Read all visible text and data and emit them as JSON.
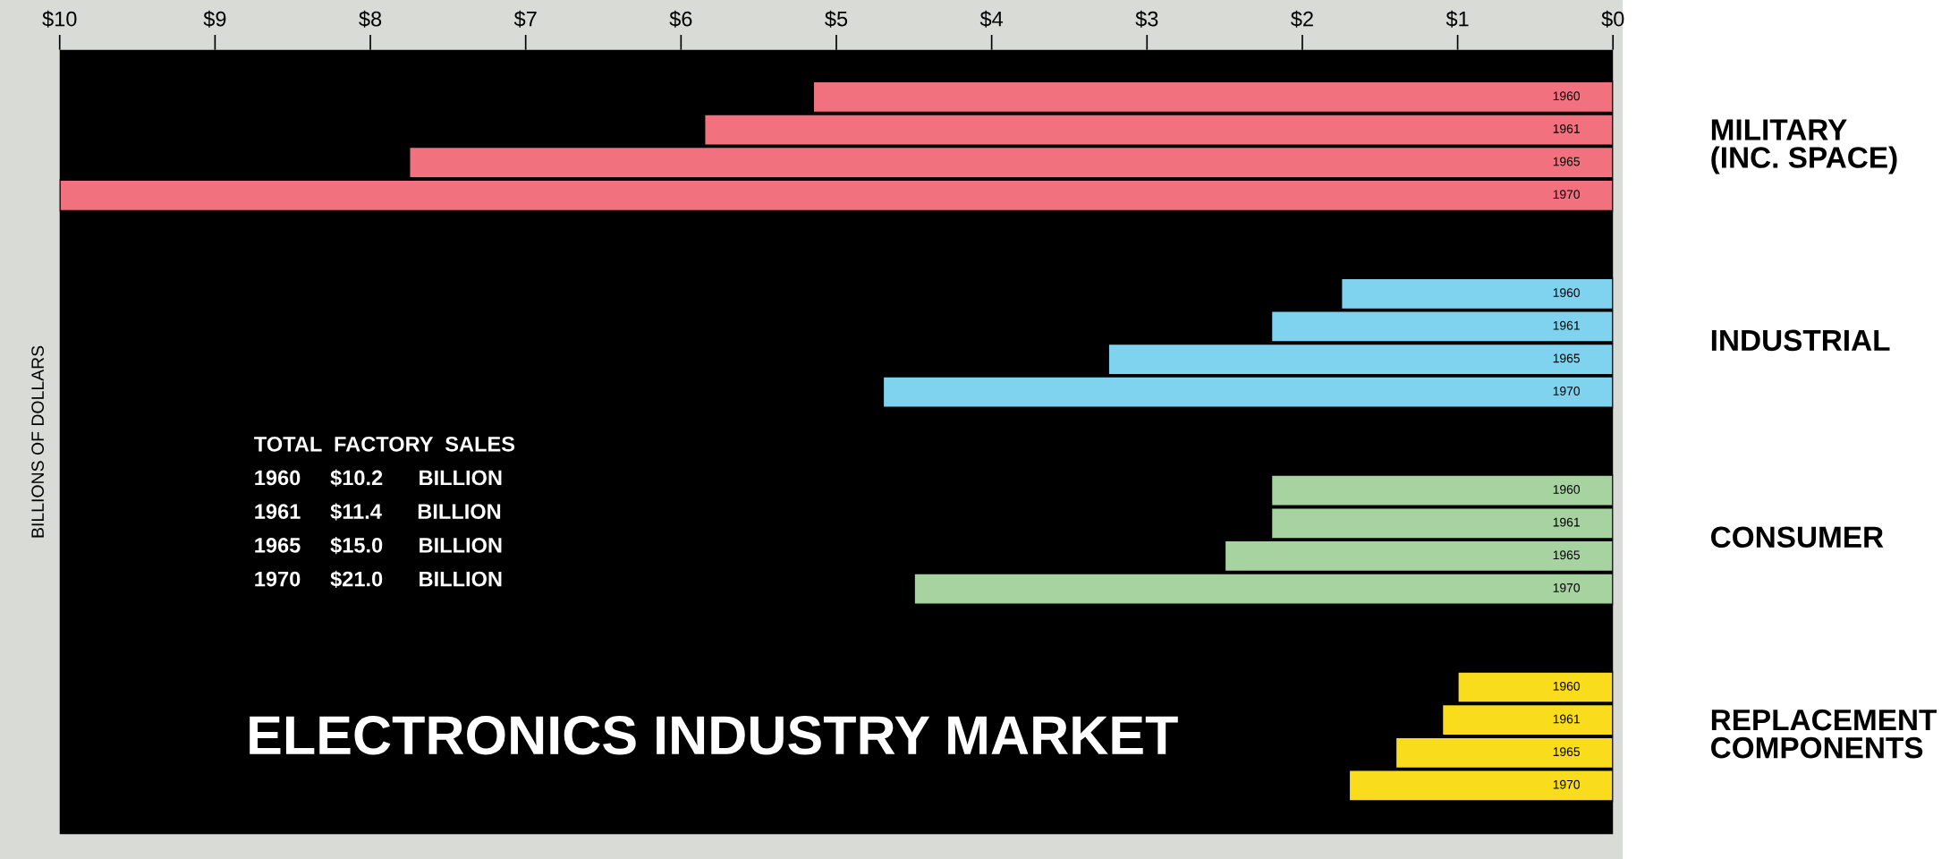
{
  "chart_data": {
    "type": "bar",
    "orientation": "horizontal",
    "ylabel": "BILLIONS OF DOLLARS",
    "categories": [
      "1960",
      "1961",
      "1965",
      "1970",
      null,
      null,
      "1960",
      "1961",
      "1965",
      "1970",
      null,
      null,
      "1960",
      "1961",
      "1965",
      "1970",
      null,
      null,
      "1960",
      "1961",
      "1965",
      "1970"
    ],
    "series": [
      {
        "name": "MILITARY\n(INC. SPACE)",
        "color": "#f2717f",
        "values": [
          5.15,
          5.85,
          7.75,
          10.0,
          null,
          null,
          null,
          null,
          null,
          null,
          null,
          null,
          null,
          null,
          null,
          null,
          null,
          null,
          null,
          null,
          null,
          null
        ]
      },
      {
        "name": "INDUSTRIAL",
        "color": "#7fd3ef",
        "values": [
          null,
          null,
          null,
          null,
          null,
          null,
          1.75,
          2.2,
          3.25,
          4.7,
          null,
          null,
          null,
          null,
          null,
          null,
          null,
          null,
          null,
          null,
          null,
          null
        ]
      },
      {
        "name": "CONSUMER",
        "color": "#a6d3a0",
        "values": [
          null,
          null,
          null,
          null,
          null,
          null,
          null,
          null,
          null,
          null,
          null,
          null,
          2.2,
          2.2,
          2.5,
          4.5,
          null,
          null,
          null,
          null,
          null,
          null
        ]
      },
      {
        "name": "REPLACEMENT\nCOMPONENTS",
        "color": "#f9dc1c",
        "values": [
          null,
          null,
          null,
          null,
          null,
          null,
          null,
          null,
          null,
          null,
          null,
          null,
          null,
          null,
          null,
          null,
          null,
          null,
          1.0,
          1.1,
          1.4,
          1.7
        ]
      }
    ],
    "xlim": [
      10,
      0
    ],
    "xticks": [
      {
        "value": 10,
        "label": "$10"
      },
      {
        "value": 9,
        "label": "$9"
      },
      {
        "value": 8,
        "label": "$8"
      },
      {
        "value": 7,
        "label": "$7"
      },
      {
        "value": 6,
        "label": "$6"
      },
      {
        "value": 5,
        "label": "$5"
      },
      {
        "value": 4,
        "label": "$4"
      },
      {
        "value": 3,
        "label": "$3"
      },
      {
        "value": 2,
        "label": "$2"
      },
      {
        "value": 1,
        "label": "$1"
      },
      {
        "value": 0,
        "label": "$0"
      }
    ],
    "annotations": [
      {
        "text": "TOTAL  FACTORY  SALES"
      },
      {
        "text": "1960     $10.2      BILLION"
      },
      {
        "text": "1961     $11.4      BILLION"
      },
      {
        "text": "1965     $15.0      BILLION"
      },
      {
        "text": "1970     $21.0      BILLION"
      },
      {
        "text": "ELECTRONICS INDUSTRY MARKET"
      }
    ]
  }
}
